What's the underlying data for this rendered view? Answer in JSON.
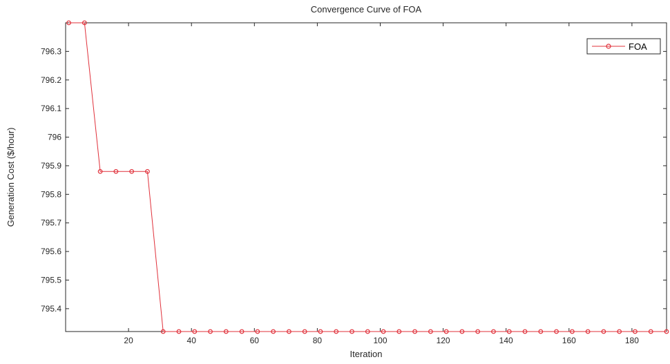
{
  "chart_data": {
    "type": "line",
    "title": "Convergence Curve of FOA",
    "xlabel": "Iteration",
    "ylabel": "Generation Cost ($/hour)",
    "xlim": [
      0,
      191
    ],
    "ylim": [
      795.32,
      796.4
    ],
    "xticks": [
      20,
      40,
      60,
      80,
      100,
      120,
      140,
      160,
      180
    ],
    "xtick_labels": [
      "20",
      "40",
      "60",
      "80",
      "100",
      "120",
      "140",
      "160",
      "180"
    ],
    "yticks": [
      795.4,
      795.5,
      795.6,
      795.7,
      795.8,
      795.9,
      796,
      796.1,
      796.2,
      796.3
    ],
    "ytick_labels": [
      "795.4",
      "795.5",
      "795.6",
      "795.7",
      "795.8",
      "795.9",
      "796",
      "796.1",
      "796.2",
      "796.3"
    ],
    "grid": false,
    "legend_position": "top-right",
    "series": [
      {
        "name": "FOA",
        "color": "#e0303a",
        "marker": "circle",
        "x": [
          1,
          6,
          11,
          16,
          21,
          26,
          31,
          36,
          41,
          46,
          51,
          56,
          61,
          66,
          71,
          76,
          81,
          86,
          91,
          96,
          101,
          106,
          111,
          116,
          121,
          126,
          131,
          136,
          141,
          146,
          151,
          156,
          161,
          166,
          171,
          176,
          181,
          186,
          191
        ],
        "y": [
          796.4,
          796.4,
          795.88,
          795.88,
          795.88,
          795.88,
          795.32,
          795.32,
          795.32,
          795.32,
          795.32,
          795.32,
          795.32,
          795.32,
          795.32,
          795.32,
          795.32,
          795.32,
          795.32,
          795.32,
          795.32,
          795.32,
          795.32,
          795.32,
          795.32,
          795.32,
          795.32,
          795.32,
          795.32,
          795.32,
          795.32,
          795.32,
          795.32,
          795.32,
          795.32,
          795.32,
          795.32,
          795.32,
          795.32
        ]
      }
    ]
  }
}
